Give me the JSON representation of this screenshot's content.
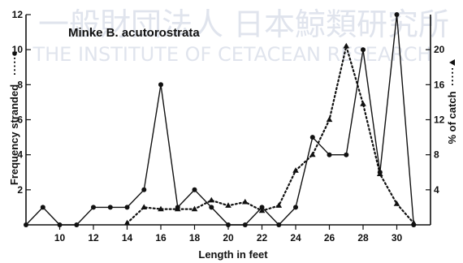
{
  "watermark": {
    "line1": "一般財団法人 日本鯨類研究所",
    "line2": "THE INSTITUTE OF CETACEAN RESEARCH"
  },
  "chart_data": {
    "type": "line",
    "title": "Minke B. acutorostrata",
    "xlabel": "Length in feet",
    "ylabel_left": "Frequency stranded",
    "ylabel_right": "% of catch",
    "xlim": [
      8,
      32
    ],
    "ylim_left": [
      0,
      12
    ],
    "ylim_right": [
      0,
      24
    ],
    "x_ticks": [
      10,
      12,
      14,
      16,
      18,
      20,
      22,
      24,
      26,
      28,
      30
    ],
    "y_left_ticks": [
      2,
      4,
      6,
      8,
      10,
      12
    ],
    "y_right_ticks": [
      4,
      8,
      12,
      16,
      20
    ],
    "grid": false,
    "series": [
      {
        "name": "Frequency stranded",
        "axis": "left",
        "style": "solid-circle",
        "x": [
          8,
          9,
          10,
          11,
          12,
          13,
          14,
          15,
          16,
          17,
          18,
          19,
          20,
          21,
          22,
          23,
          24,
          25,
          26,
          27,
          28,
          29,
          30,
          31
        ],
        "y": [
          0,
          1,
          0,
          0,
          1,
          1,
          1,
          2,
          8,
          1,
          2,
          1,
          0,
          0,
          1,
          0,
          1,
          5,
          4,
          4,
          10,
          3,
          12,
          0
        ]
      },
      {
        "name": "% of catch",
        "axis": "right",
        "style": "dotted-triangle",
        "x": [
          14,
          15,
          16,
          17,
          18,
          19,
          20,
          21,
          22,
          23,
          24,
          25,
          26,
          27,
          28,
          29,
          30,
          31
        ],
        "y": [
          0.2,
          2,
          1.8,
          1.8,
          1.8,
          2.8,
          2.2,
          2.6,
          1.6,
          2.2,
          6.2,
          8,
          12,
          20.4,
          13.8,
          5.8,
          2.4,
          0.2
        ]
      }
    ]
  }
}
